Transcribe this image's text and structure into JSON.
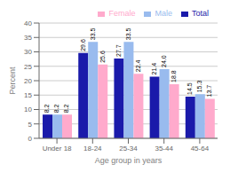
{
  "chart_data": {
    "type": "bar",
    "xlabel": "Age group in years",
    "ylabel": "Percent",
    "categories": [
      "Under 18",
      "18-24",
      "25-34",
      "35-44",
      "45-64"
    ],
    "series": [
      {
        "name": "Total",
        "color": "#1a1aaa",
        "values": [
          8.2,
          29.6,
          27.7,
          21.4,
          14.5
        ],
        "value_labels": [
          "8.2",
          "29.6",
          "27.7",
          "21.4",
          "14.5"
        ]
      },
      {
        "name": "Male",
        "color": "#99bbee",
        "values": [
          8.2,
          33.5,
          33.5,
          24.0,
          15.3
        ],
        "value_labels": [
          "8.2",
          "33.5",
          "33.5",
          "24.0",
          "15.3"
        ]
      },
      {
        "name": "Female",
        "color": "#ffaacc",
        "values": [
          8.2,
          25.6,
          22.4,
          18.8,
          13.7
        ],
        "value_labels": [
          "8.2",
          "25.6",
          "22.4",
          "18.8",
          "13.7"
        ]
      }
    ],
    "ylim": [
      0,
      40
    ],
    "yticks": [
      0,
      5,
      10,
      15,
      20,
      25,
      30,
      35,
      40
    ],
    "grid": true,
    "legend": "upper right",
    "data_labels": true
  }
}
